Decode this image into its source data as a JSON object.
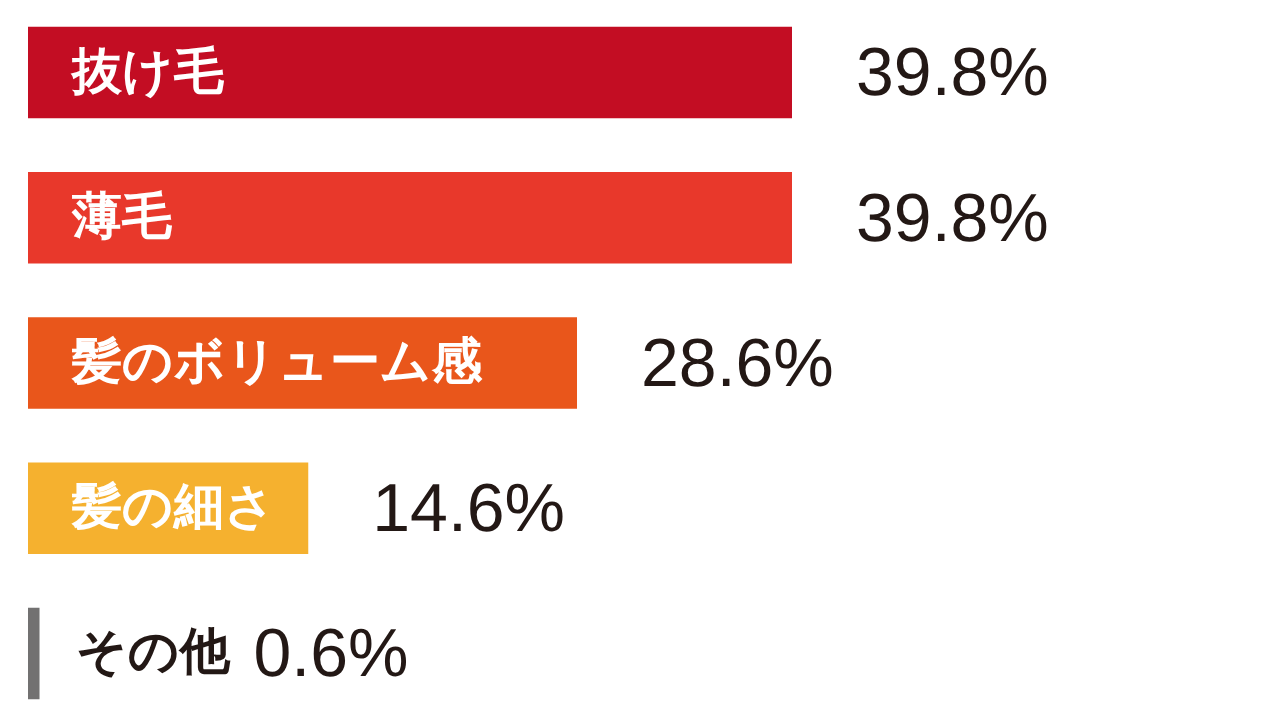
{
  "chart_data": {
    "type": "bar",
    "orientation": "horizontal",
    "categories": [
      "抜け毛",
      "薄毛",
      "髪のボリューム感",
      "髪の細さ",
      "その他"
    ],
    "values": [
      39.8,
      39.8,
      28.6,
      14.6,
      0.6
    ],
    "value_labels": [
      "39.8%",
      "39.8%",
      "28.6%",
      "14.6%",
      "0.6%"
    ],
    "colors": [
      "#c30d23",
      "#e8382b",
      "#e9561b",
      "#f5b12f",
      "#727171"
    ],
    "legend": false
  }
}
